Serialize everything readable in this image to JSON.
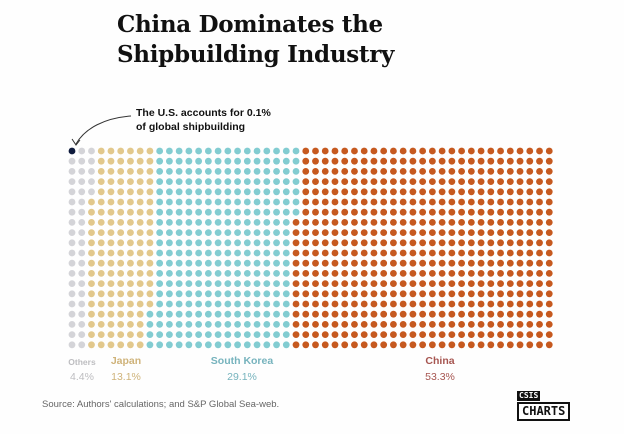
{
  "title_line1": "China Dominates the",
  "title_line2": "Shipbuilding Industry",
  "annotation_line1": "The U.S. accounts for 0.1%",
  "annotation_line2": "of global shipbuilding",
  "source": "Source: Authors' calculations; and S&P Global Sea-web.",
  "logo": {
    "top": "CSIS",
    "bottom": "CHARTS"
  },
  "chart_data": {
    "type": "waffle",
    "title": "China Dominates the Shipbuilding Industry",
    "rows": 20,
    "columns": 50,
    "unit_percent": 0.1,
    "series": [
      {
        "name": "U.S.",
        "value": 0.1,
        "label": "",
        "pct_label": "",
        "color": "#0e1a3c",
        "label_color": "#0e1a3c"
      },
      {
        "name": "Others",
        "value": 4.4,
        "label": "Others",
        "pct_label": "4.4%",
        "color": "#d4d4d8",
        "label_color": "#bdbdc0"
      },
      {
        "name": "Japan",
        "value": 13.1,
        "label": "Japan",
        "pct_label": "13.1%",
        "color": "#e2c88c",
        "label_color": "#cfb37a"
      },
      {
        "name": "South Korea",
        "value": 29.1,
        "label": "South Korea",
        "pct_label": "29.1%",
        "color": "#82ccd1",
        "label_color": "#76b3bd"
      },
      {
        "name": "China",
        "value": 53.3,
        "label": "China",
        "pct_label": "53.3%",
        "color": "#c6591f",
        "label_color": "#a65550"
      }
    ]
  }
}
